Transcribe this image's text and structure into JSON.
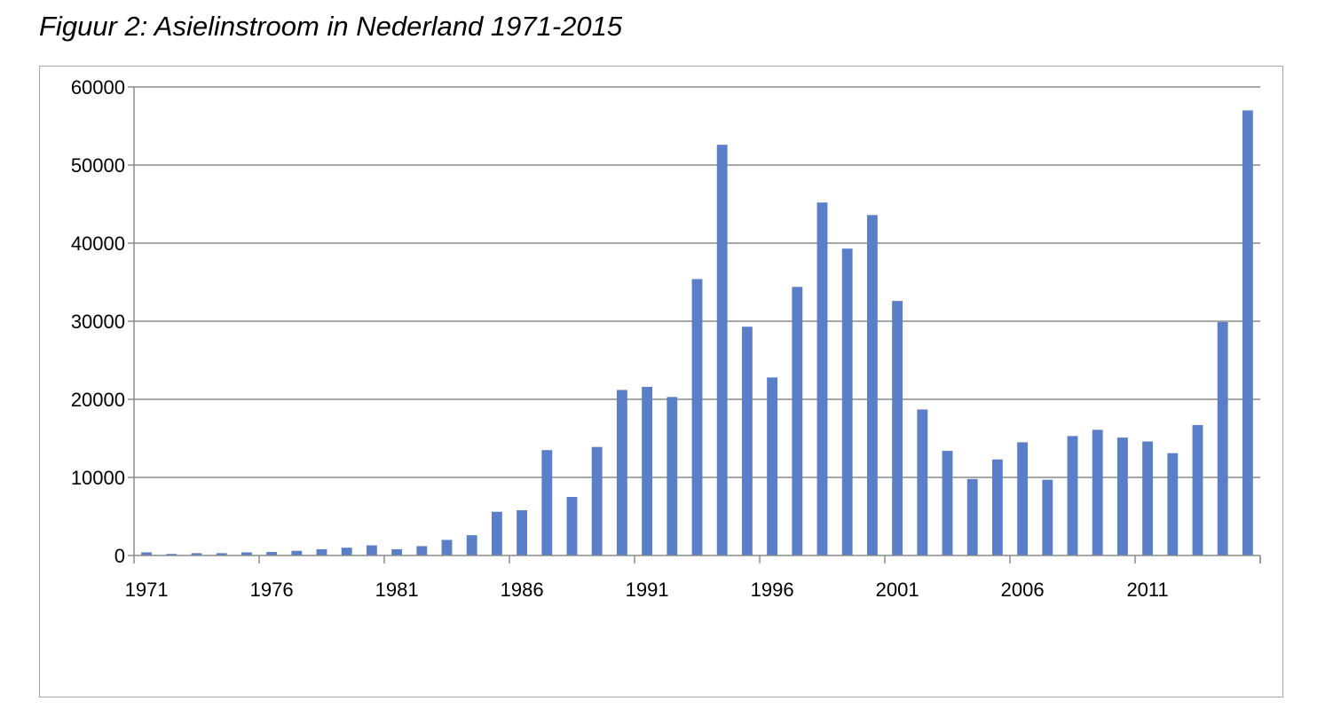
{
  "title": "Figuur 2: Asielinstroom in Nederland 1971-2015",
  "colors": {
    "bar": "#5b7ec8",
    "grid": "#8c8c8c",
    "axis": "#8c8c8c",
    "frame": "#a6a6a6"
  },
  "chart_data": {
    "type": "bar",
    "title": "Figuur 2: Asielinstroom in Nederland 1971-2015",
    "xlabel": "",
    "ylabel": "",
    "ylim": [
      0,
      60000
    ],
    "yticks": [
      0,
      10000,
      20000,
      30000,
      40000,
      50000,
      60000
    ],
    "ytick_labels": [
      "0",
      "10000",
      "20000",
      "30000",
      "40000",
      "50000",
      "60000"
    ],
    "xtick_labels": [
      "1971",
      "1976",
      "1981",
      "1986",
      "1991",
      "1996",
      "2001",
      "2006",
      "2011"
    ],
    "grid": true,
    "legend": "none",
    "categories": [
      1971,
      1972,
      1973,
      1974,
      1975,
      1976,
      1977,
      1978,
      1979,
      1980,
      1981,
      1982,
      1983,
      1984,
      1985,
      1986,
      1987,
      1988,
      1989,
      1990,
      1991,
      1992,
      1993,
      1994,
      1995,
      1996,
      1997,
      1998,
      1999,
      2000,
      2001,
      2002,
      2003,
      2004,
      2005,
      2006,
      2007,
      2008,
      2009,
      2010,
      2011,
      2012,
      2013,
      2014,
      2015
    ],
    "values": [
      400,
      200,
      300,
      300,
      400,
      450,
      600,
      800,
      1000,
      1300,
      800,
      1200,
      2000,
      2600,
      5600,
      5800,
      13500,
      7500,
      13900,
      21200,
      21600,
      20300,
      35400,
      52600,
      29300,
      22800,
      34400,
      45200,
      39300,
      43600,
      32600,
      18700,
      13400,
      9800,
      12300,
      14500,
      9700,
      15300,
      16100,
      15100,
      14600,
      13100,
      16700,
      29900,
      57000
    ]
  }
}
